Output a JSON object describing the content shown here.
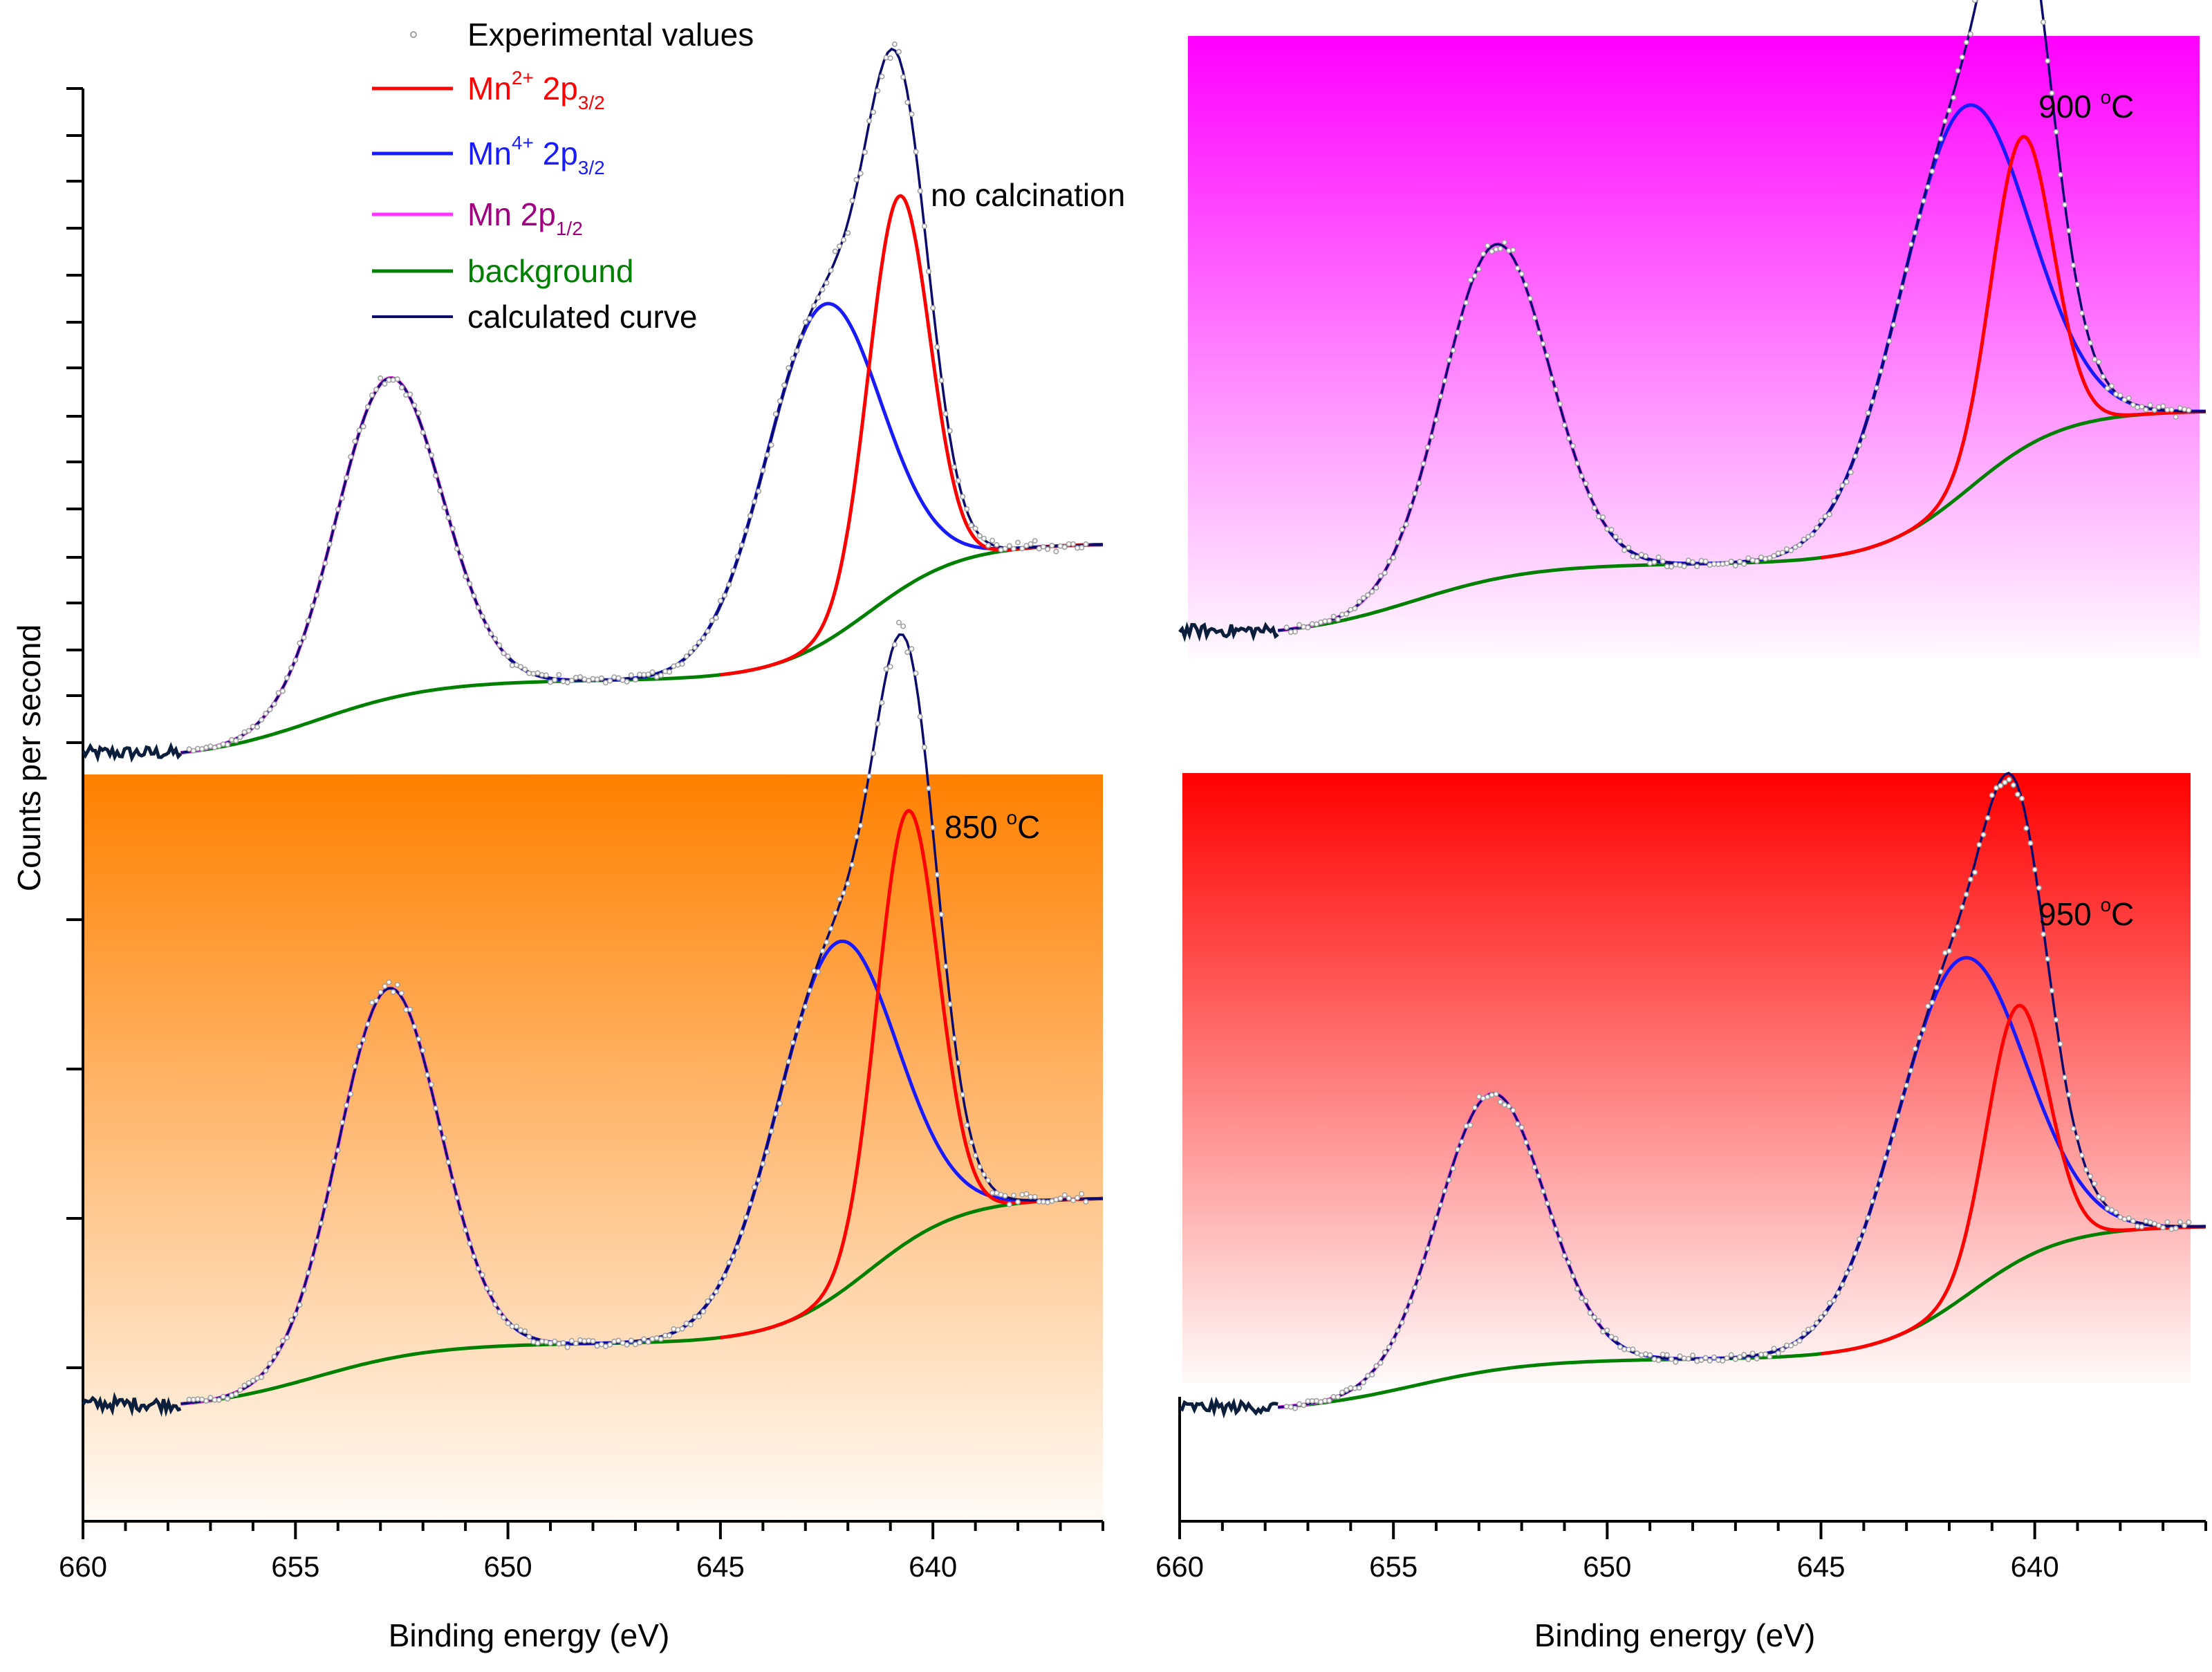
{
  "colors": {
    "mn2": "#ff0000",
    "mn4": "#1a1aff",
    "mn2p12": "#b400b4",
    "background": "#008000",
    "calculated": "#0b0b6e",
    "experimental": "#a0a0a0",
    "panel_850": "#ff8000",
    "panel_900": "#ff00ff",
    "panel_950": "#ff0000"
  },
  "y_axis_label": "Counts per second",
  "chart_data": [
    {
      "id": "no-calcination",
      "type": "line",
      "title": "no calcination",
      "xlabel": "",
      "ylabel": "Counts per second",
      "xlim": [
        660,
        636
      ],
      "ylim": [
        0,
        100
      ],
      "shading": "none",
      "baseline": {
        "left": 37.5,
        "mid": 24,
        "right": 1
      },
      "peaks": {
        "mn2p12": {
          "center": 652.8,
          "height": 54,
          "sigma": 1.25
        },
        "mn4": {
          "center": 642.6,
          "height": 57,
          "sigma": 1.35
        },
        "mn2": {
          "center": 640.8,
          "height": 66.5,
          "sigma": 0.72
        }
      },
      "legend": [
        {
          "label": "Experimental values",
          "color_key": "experimental",
          "kind": "marker"
        },
        {
          "label": "Mn",
          "sup": "2+",
          "mid": " 2p",
          "sub": "3/2",
          "color_key": "mn2",
          "kind": "line"
        },
        {
          "label": "Mn",
          "sup": "4+",
          "mid": " 2p",
          "sub": "3/2",
          "color_key": "mn4",
          "kind": "line"
        },
        {
          "label": "Mn 2p",
          "sup": "",
          "mid": "",
          "sub": "1/2",
          "color_key": "mn2p12",
          "kind": "line"
        },
        {
          "label": "background",
          "color_key": "background",
          "kind": "line"
        },
        {
          "label": "calculated curve",
          "color_key": "calculated",
          "kind": "line"
        }
      ]
    },
    {
      "id": "850c",
      "type": "line",
      "title": "850 °C",
      "title_main": "850 ",
      "title_sup": "o",
      "title_unit": "C",
      "xlabel": "Binding energy (eV)",
      "ylabel": "Counts per second",
      "xlim": [
        660,
        636
      ],
      "xticks": [
        660,
        655,
        650,
        645,
        640
      ],
      "ylim": [
        0,
        100
      ],
      "shading": "panel_850",
      "baseline": {
        "left": 36,
        "mid": 25,
        "right": 1
      },
      "peaks": {
        "mn2p12": {
          "center": 652.8,
          "height": 61,
          "sigma": 1.2
        },
        "mn4": {
          "center": 642.3,
          "height": 58,
          "sigma": 1.4
        },
        "mn2": {
          "center": 640.6,
          "height": 71,
          "sigma": 0.72
        }
      }
    },
    {
      "id": "900c",
      "type": "line",
      "title": "900 °C",
      "title_main": "900 ",
      "title_sup": "o",
      "title_unit": "C",
      "xlabel": "",
      "ylabel": "",
      "xlim": [
        660,
        636
      ],
      "ylim": [
        0,
        100
      ],
      "shading": "panel_900",
      "baseline": {
        "left": 41,
        "mid": 28,
        "right": 1
      },
      "peaks": {
        "mn2p12": {
          "center": 652.6,
          "height": 59,
          "sigma": 1.25
        },
        "mn4": {
          "center": 641.7,
          "height": 68,
          "sigma": 1.5
        },
        "mn2": {
          "center": 640.3,
          "height": 55,
          "sigma": 0.72
        }
      }
    },
    {
      "id": "950c",
      "type": "line",
      "title": "950 °C",
      "title_main": "950 ",
      "title_sup": "o",
      "title_unit": "C",
      "xlabel": "Binding energy (eV)",
      "ylabel": "",
      "xlim": [
        660,
        636
      ],
      "xticks": [
        660,
        655,
        650,
        645,
        640
      ],
      "ylim": [
        0,
        100
      ],
      "shading": "panel_950",
      "baseline": {
        "left": 36,
        "mid": 26,
        "right": 1
      },
      "peaks": {
        "mn2p12": {
          "center": 652.7,
          "height": 52,
          "sigma": 1.25
        },
        "mn4": {
          "center": 641.8,
          "height": 64,
          "sigma": 1.5
        },
        "mn2": {
          "center": 640.4,
          "height": 48,
          "sigma": 0.72
        }
      }
    }
  ]
}
